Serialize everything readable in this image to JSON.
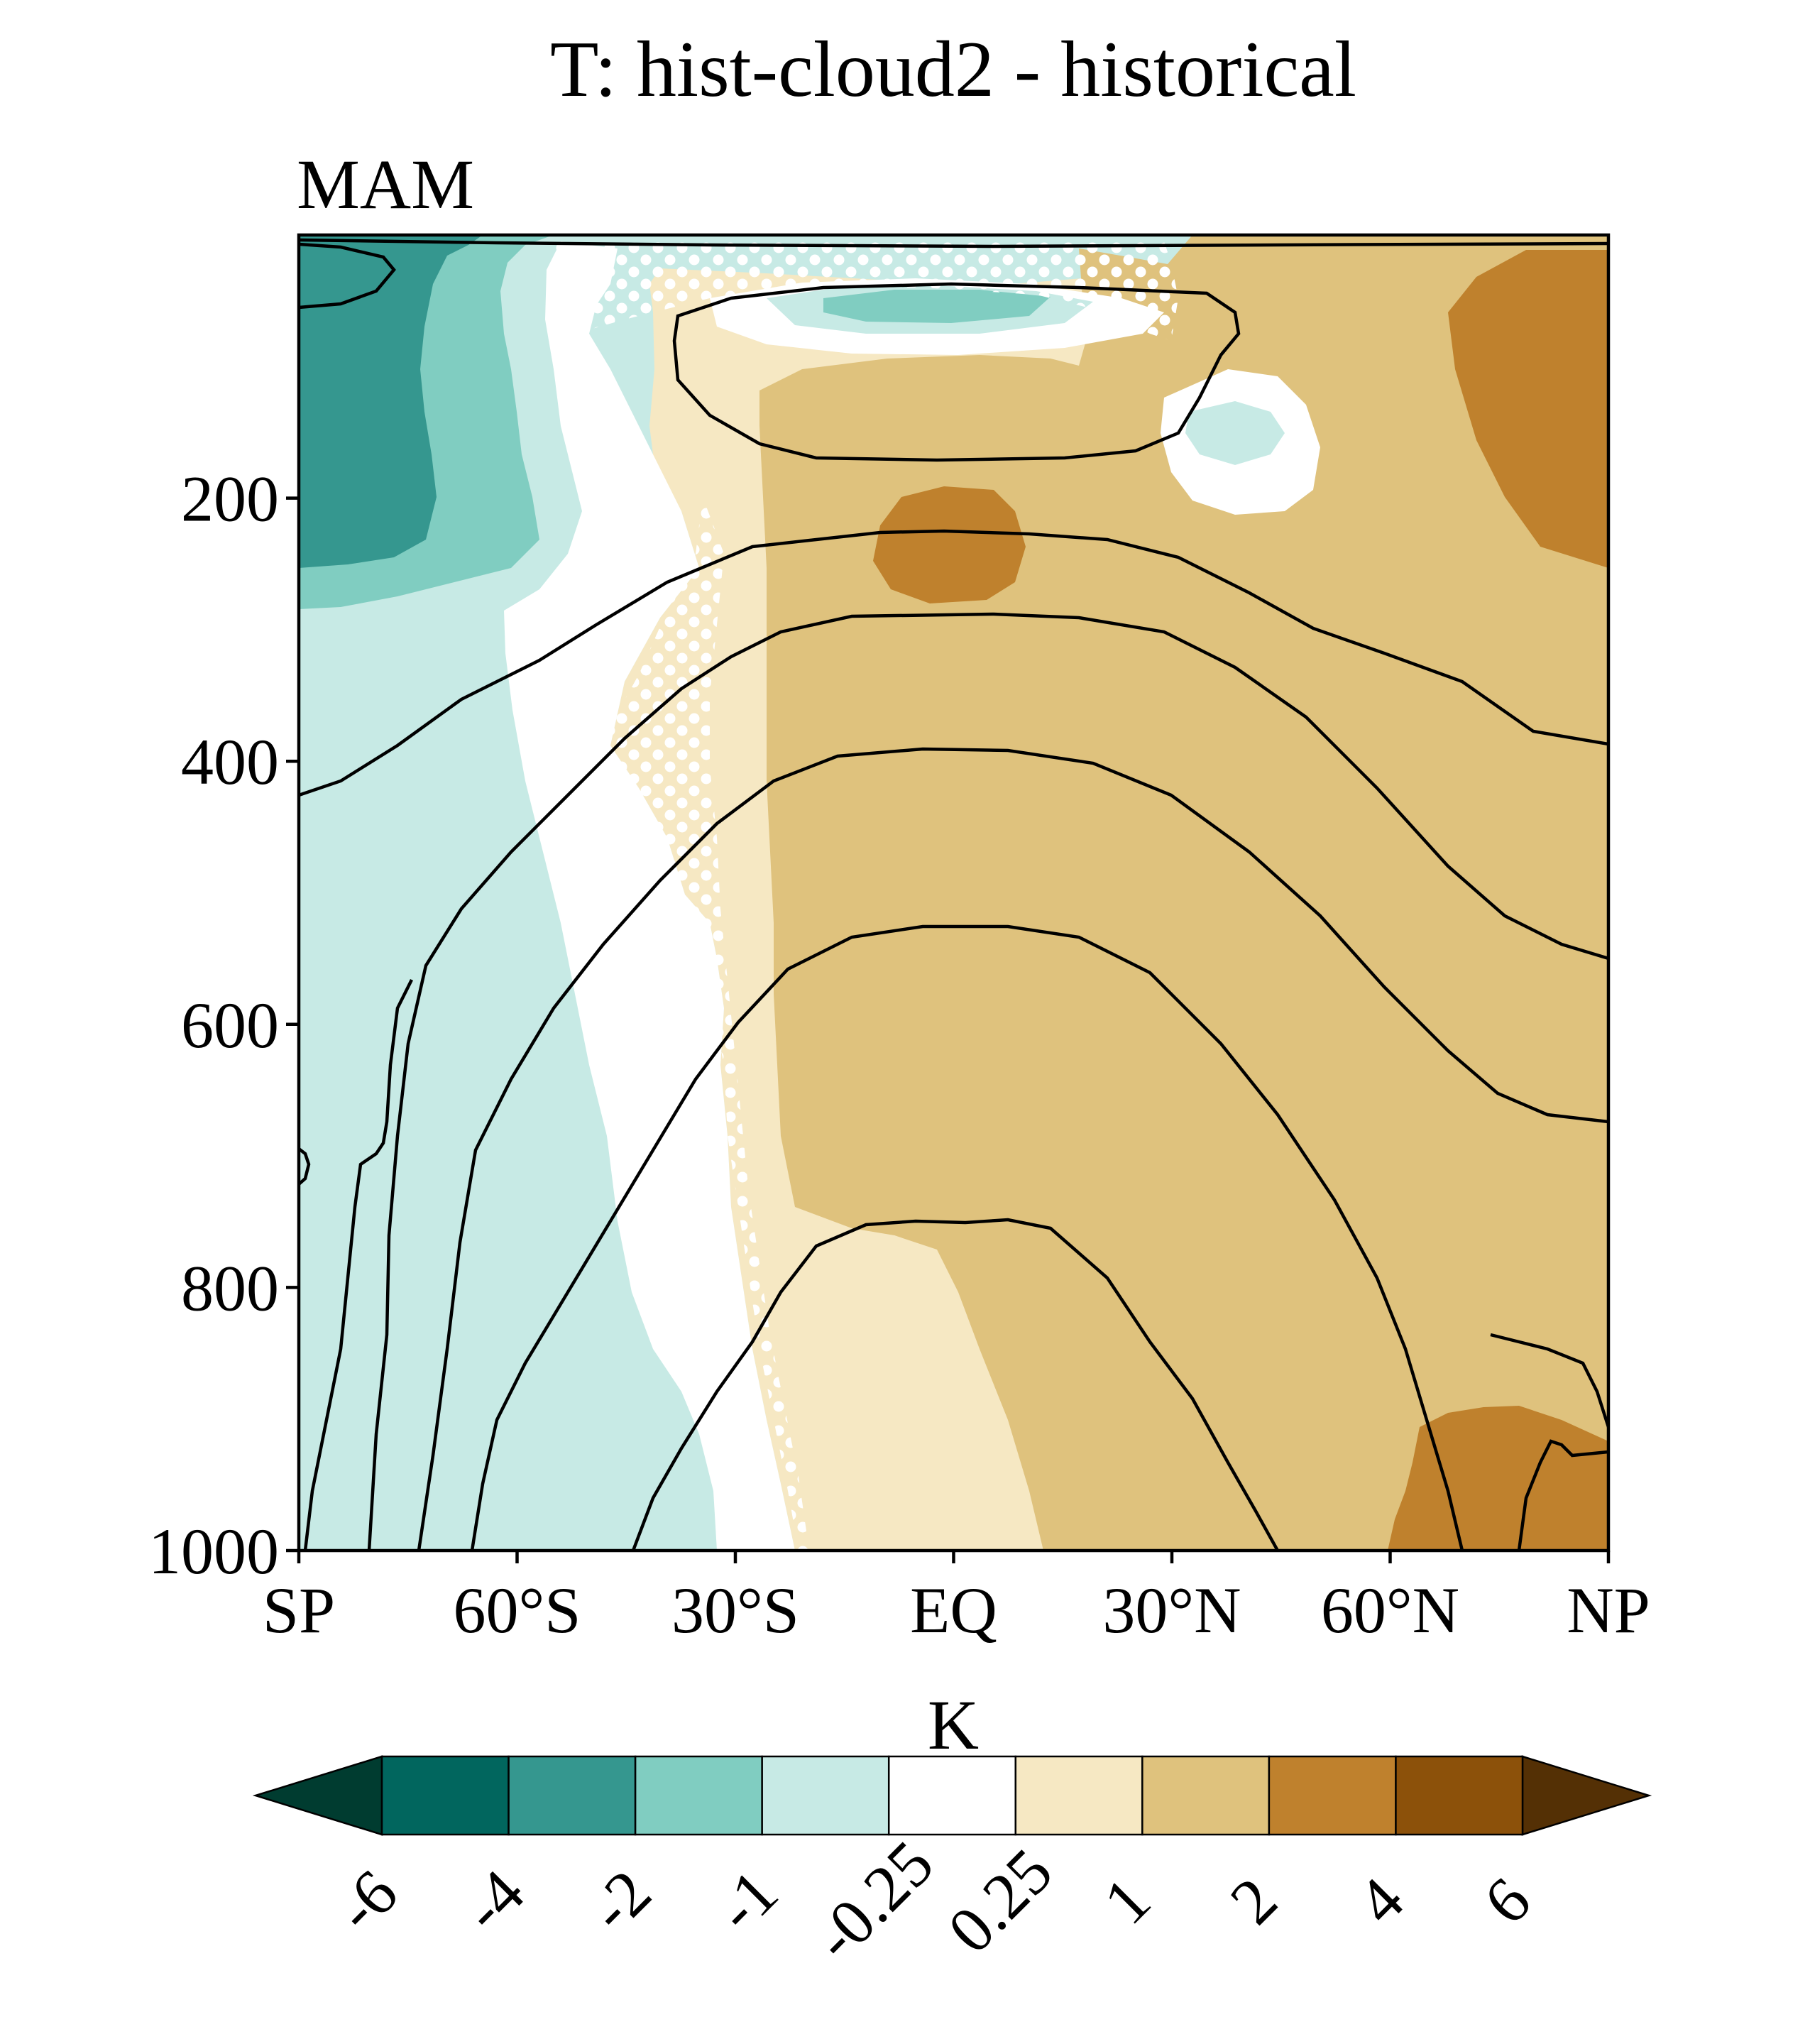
{
  "chart_data": {
    "type": "heatmap",
    "title": "T: hist-cloud2 - historical",
    "subtitle": "MAM",
    "xlabel": "",
    "ylabel": "",
    "x_range": [
      -90,
      90
    ],
    "y_range": [
      1000,
      0
    ],
    "x_ticks": [
      {
        "value": -90,
        "label": "SP"
      },
      {
        "value": -60,
        "label": "60°S"
      },
      {
        "value": -30,
        "label": "30°S"
      },
      {
        "value": 0,
        "label": "EQ"
      },
      {
        "value": 30,
        "label": "30°N"
      },
      {
        "value": 60,
        "label": "60°N"
      },
      {
        "value": 90,
        "label": "NP"
      }
    ],
    "y_ticks": [
      {
        "value": 200,
        "label": "200"
      },
      {
        "value": 400,
        "label": "400"
      },
      {
        "value": 600,
        "label": "600"
      },
      {
        "value": 800,
        "label": "800"
      },
      {
        "value": 1000,
        "label": "1000"
      }
    ],
    "colorbar": {
      "unit": "K",
      "levels": [
        "-6",
        "-4",
        "-2",
        "-1",
        "-0.25",
        "0.25",
        "1",
        "2",
        "4",
        "6"
      ],
      "colors": [
        "#01665e",
        "#35978f",
        "#80cdc1",
        "#c7eae5",
        "#ffffff",
        "#f6e8c3",
        "#dfc27d",
        "#bf812d",
        "#8c510a"
      ],
      "under_color": "#003c30",
      "over_color": "#543005"
    },
    "field_regions": [
      {
        "level_color": "#c7eae5",
        "desc": "southern high-latitude cooling, full column",
        "lat": [
          -90,
          -42
        ],
        "p": [
          0,
          1000
        ]
      },
      {
        "level_color": "#80cdc1",
        "desc": "upper-level SH cooling",
        "lat": [
          -90,
          -62
        ],
        "p": [
          0,
          260
        ]
      },
      {
        "level_color": "#35978f",
        "desc": "strongest SH cooling near pole aloft",
        "lat": [
          -90,
          -73
        ],
        "p": [
          0,
          230
        ]
      },
      {
        "level_color": "#80cdc1",
        "desc": "tropical stratospheric cooling",
        "lat": [
          -17,
          12
        ],
        "p": [
          40,
          70
        ]
      },
      {
        "level_color": "#f6e8c3",
        "desc": "tropical / NH warming",
        "lat": [
          -35,
          90
        ],
        "p": [
          0,
          1000
        ]
      },
      {
        "level_color": "#dfc27d",
        "desc": "main tropical tropospheric warming",
        "lat": [
          -27,
          90
        ],
        "p": [
          130,
          1000
        ]
      },
      {
        "level_color": "#bf812d",
        "desc": "upper tropical warming maximum",
        "lat": [
          -11,
          10
        ],
        "p": [
          195,
          285
        ]
      },
      {
        "level_color": "#bf812d",
        "desc": "NH polar upper warming",
        "lat": [
          68,
          90
        ],
        "p": [
          10,
          255
        ]
      },
      {
        "level_color": "#bf812d",
        "desc": "NH polar surface warming",
        "lat": [
          60,
          90
        ],
        "p": [
          890,
          1000
        ]
      }
    ],
    "contour_note": "black lines are climatological temperature contours; white dots mark significance"
  }
}
